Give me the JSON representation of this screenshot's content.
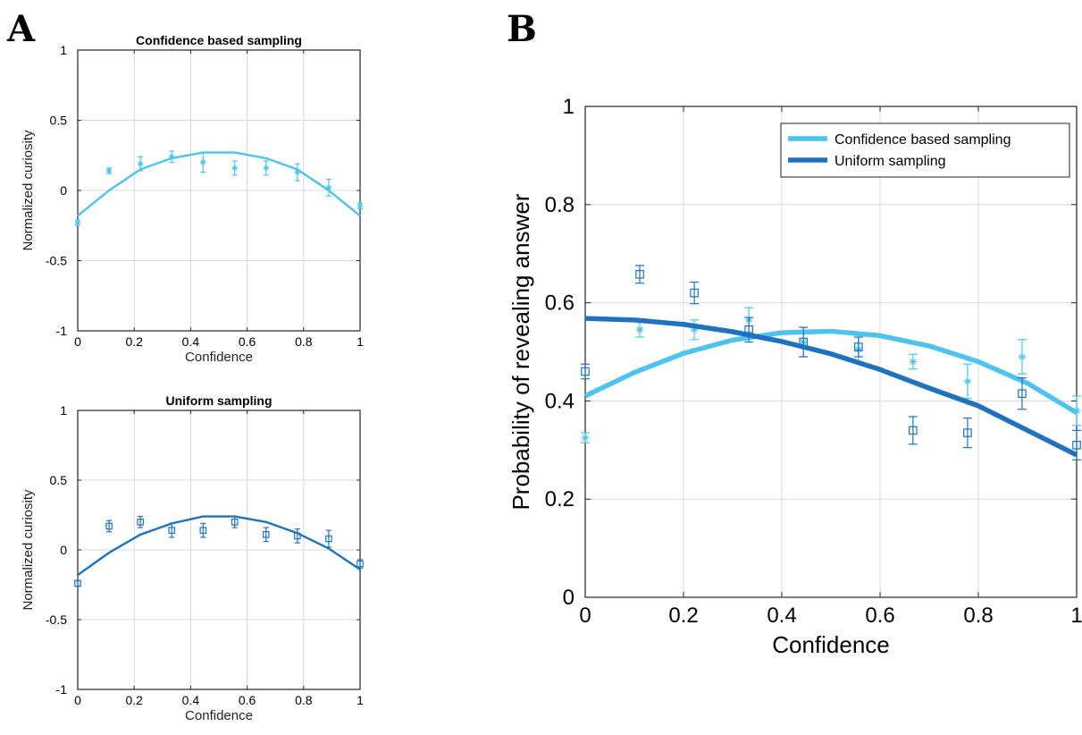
{
  "panel_a_letter": "A",
  "panel_b_letter": "B",
  "colors": {
    "confidence": "#4ec3ef",
    "uniform": "#1f72bd"
  },
  "chart_data": [
    {
      "id": "a-top",
      "type": "line",
      "title": "Confidence based sampling",
      "xlabel": "Confidence",
      "ylabel": "Normalized curiosity",
      "xlim": [
        0,
        1
      ],
      "ylim": [
        -1,
        1
      ],
      "xticks": [
        0,
        0.2,
        0.4,
        0.6,
        0.8,
        1
      ],
      "xtick_labels": [
        "0",
        "0.2",
        "0.4",
        "0.6",
        "0.8",
        "1"
      ],
      "yticks": [
        -1,
        -0.5,
        0,
        0.5,
        1
      ],
      "ytick_labels": [
        "-1",
        "-0.5",
        "0",
        "0.5",
        "1"
      ],
      "grid": true,
      "series": [
        {
          "color": "#4ec3ef",
          "line": {
            "x": [
              0,
              0.111,
              0.222,
              0.333,
              0.444,
              0.556,
              0.667,
              0.778,
              0.889,
              1
            ],
            "y": [
              -0.18,
              0.0,
              0.15,
              0.23,
              0.27,
              0.27,
              0.23,
              0.15,
              0.0,
              -0.18
            ]
          },
          "points": {
            "marker": "asterisk",
            "x": [
              0,
              0.111,
              0.222,
              0.333,
              0.444,
              0.556,
              0.667,
              0.778,
              0.889,
              1
            ],
            "y": [
              -0.23,
              0.14,
              0.19,
              0.24,
              0.2,
              0.16,
              0.16,
              0.13,
              0.02,
              -0.11
            ],
            "err": [
              0.02,
              0.02,
              0.05,
              0.04,
              0.07,
              0.05,
              0.05,
              0.06,
              0.06,
              0.02
            ]
          }
        }
      ]
    },
    {
      "id": "a-bottom",
      "type": "line",
      "title": "Uniform sampling",
      "xlabel": "Confidence",
      "ylabel": "Normalized curiosity",
      "xlim": [
        0,
        1
      ],
      "ylim": [
        -1,
        1
      ],
      "xticks": [
        0,
        0.2,
        0.4,
        0.6,
        0.8,
        1
      ],
      "xtick_labels": [
        "0",
        "0.2",
        "0.4",
        "0.6",
        "0.8",
        "1"
      ],
      "yticks": [
        -1,
        -0.5,
        0,
        0.5,
        1
      ],
      "ytick_labels": [
        "-1",
        "-0.5",
        "0",
        "0.5",
        "1"
      ],
      "grid": true,
      "series": [
        {
          "color": "#1f72bd",
          "line": {
            "x": [
              0,
              0.111,
              0.222,
              0.333,
              0.444,
              0.556,
              0.667,
              0.778,
              0.889,
              1
            ],
            "y": [
              -0.18,
              -0.02,
              0.11,
              0.19,
              0.24,
              0.24,
              0.2,
              0.12,
              0.01,
              -0.14
            ]
          },
          "points": {
            "marker": "square",
            "x": [
              0,
              0.111,
              0.222,
              0.333,
              0.444,
              0.556,
              0.667,
              0.778,
              0.889,
              1
            ],
            "y": [
              -0.24,
              0.17,
              0.2,
              0.14,
              0.14,
              0.2,
              0.11,
              0.1,
              0.08,
              -0.1
            ]
          },
          "errors": [
            0.02,
            0.04,
            0.04,
            0.05,
            0.05,
            0.04,
            0.05,
            0.05,
            0.06,
            0.03
          ]
        }
      ]
    },
    {
      "id": "b",
      "type": "line",
      "title": "",
      "xlabel": "Confidence",
      "ylabel": "Probability of revealing answer",
      "xlim": [
        0,
        1
      ],
      "ylim": [
        0,
        1
      ],
      "xticks": [
        0,
        0.2,
        0.4,
        0.6,
        0.8,
        1
      ],
      "xtick_labels": [
        "0",
        "0.2",
        "0.4",
        "0.6",
        "0.8",
        "1"
      ],
      "yticks": [
        0,
        0.2,
        0.4,
        0.6,
        0.8,
        1
      ],
      "ytick_labels": [
        "0",
        "0.2",
        "0.4",
        "0.6",
        "0.8",
        "1"
      ],
      "grid": true,
      "legend_position": "top-right",
      "series": [
        {
          "name": "Confidence based sampling",
          "color": "#4ec3ef",
          "line": {
            "x": [
              0,
              0.1,
              0.2,
              0.3,
              0.4,
              0.5,
              0.6,
              0.7,
              0.8,
              0.9,
              1
            ],
            "y": [
              0.41,
              0.458,
              0.497,
              0.524,
              0.539,
              0.542,
              0.533,
              0.512,
              0.48,
              0.436,
              0.376
            ]
          },
          "points": {
            "marker": "asterisk",
            "x": [
              0,
              0.111,
              0.222,
              0.333,
              0.444,
              0.556,
              0.667,
              0.778,
              0.889,
              1
            ],
            "y": [
              0.325,
              0.545,
              0.545,
              0.565,
              0.52,
              0.505,
              0.48,
              0.44,
              0.49,
              0.38
            ],
            "err": [
              0.01,
              0.015,
              0.02,
              0.025,
              0.03,
              0.025,
              0.015,
              0.035,
              0.035,
              0.03
            ]
          }
        },
        {
          "name": "Uniform sampling",
          "color": "#1f72bd",
          "line": {
            "x": [
              0,
              0.1,
              0.2,
              0.3,
              0.4,
              0.5,
              0.6,
              0.7,
              0.8,
              0.9,
              1
            ],
            "y": [
              0.568,
              0.565,
              0.556,
              0.541,
              0.521,
              0.496,
              0.464,
              0.426,
              0.39,
              0.34,
              0.29
            ]
          },
          "points": {
            "marker": "square",
            "x": [
              0,
              0.111,
              0.222,
              0.333,
              0.444,
              0.556,
              0.667,
              0.778,
              0.889,
              1
            ],
            "y": [
              0.46,
              0.658,
              0.62,
              0.545,
              0.52,
              0.51,
              0.34,
              0.335,
              0.415,
              0.31
            ],
            "err": [
              0.015,
              0.018,
              0.022,
              0.025,
              0.03,
              0.02,
              0.028,
              0.03,
              0.032,
              0.03
            ]
          }
        }
      ]
    }
  ]
}
